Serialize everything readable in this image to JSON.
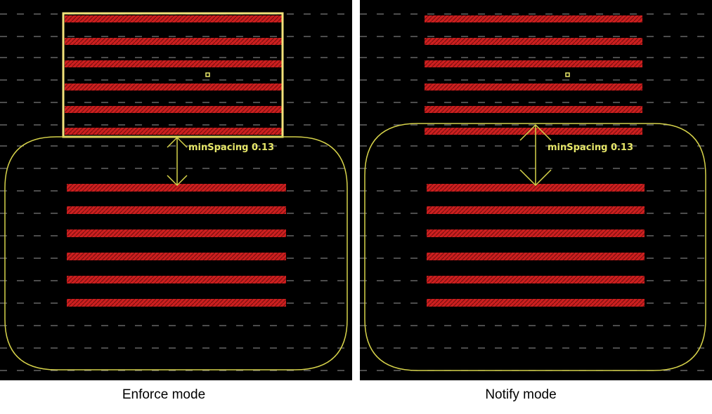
{
  "colors": {
    "background": "#000000",
    "shape": "#cc1f1f",
    "shape_hatch": "#7a0d0d",
    "selection": "#f2e27a",
    "outline": "#d6d24a",
    "annotation": "#e8e86a",
    "grid": "#7a7a7a"
  },
  "panels": [
    {
      "id": "enforce",
      "caption": "Enforce mode",
      "annotation": "minSpacing 0.13",
      "highlight_selected_block": true
    },
    {
      "id": "notify",
      "caption": "Notify mode",
      "annotation": "minSpacing 0.13",
      "highlight_selected_block": false
    }
  ]
}
